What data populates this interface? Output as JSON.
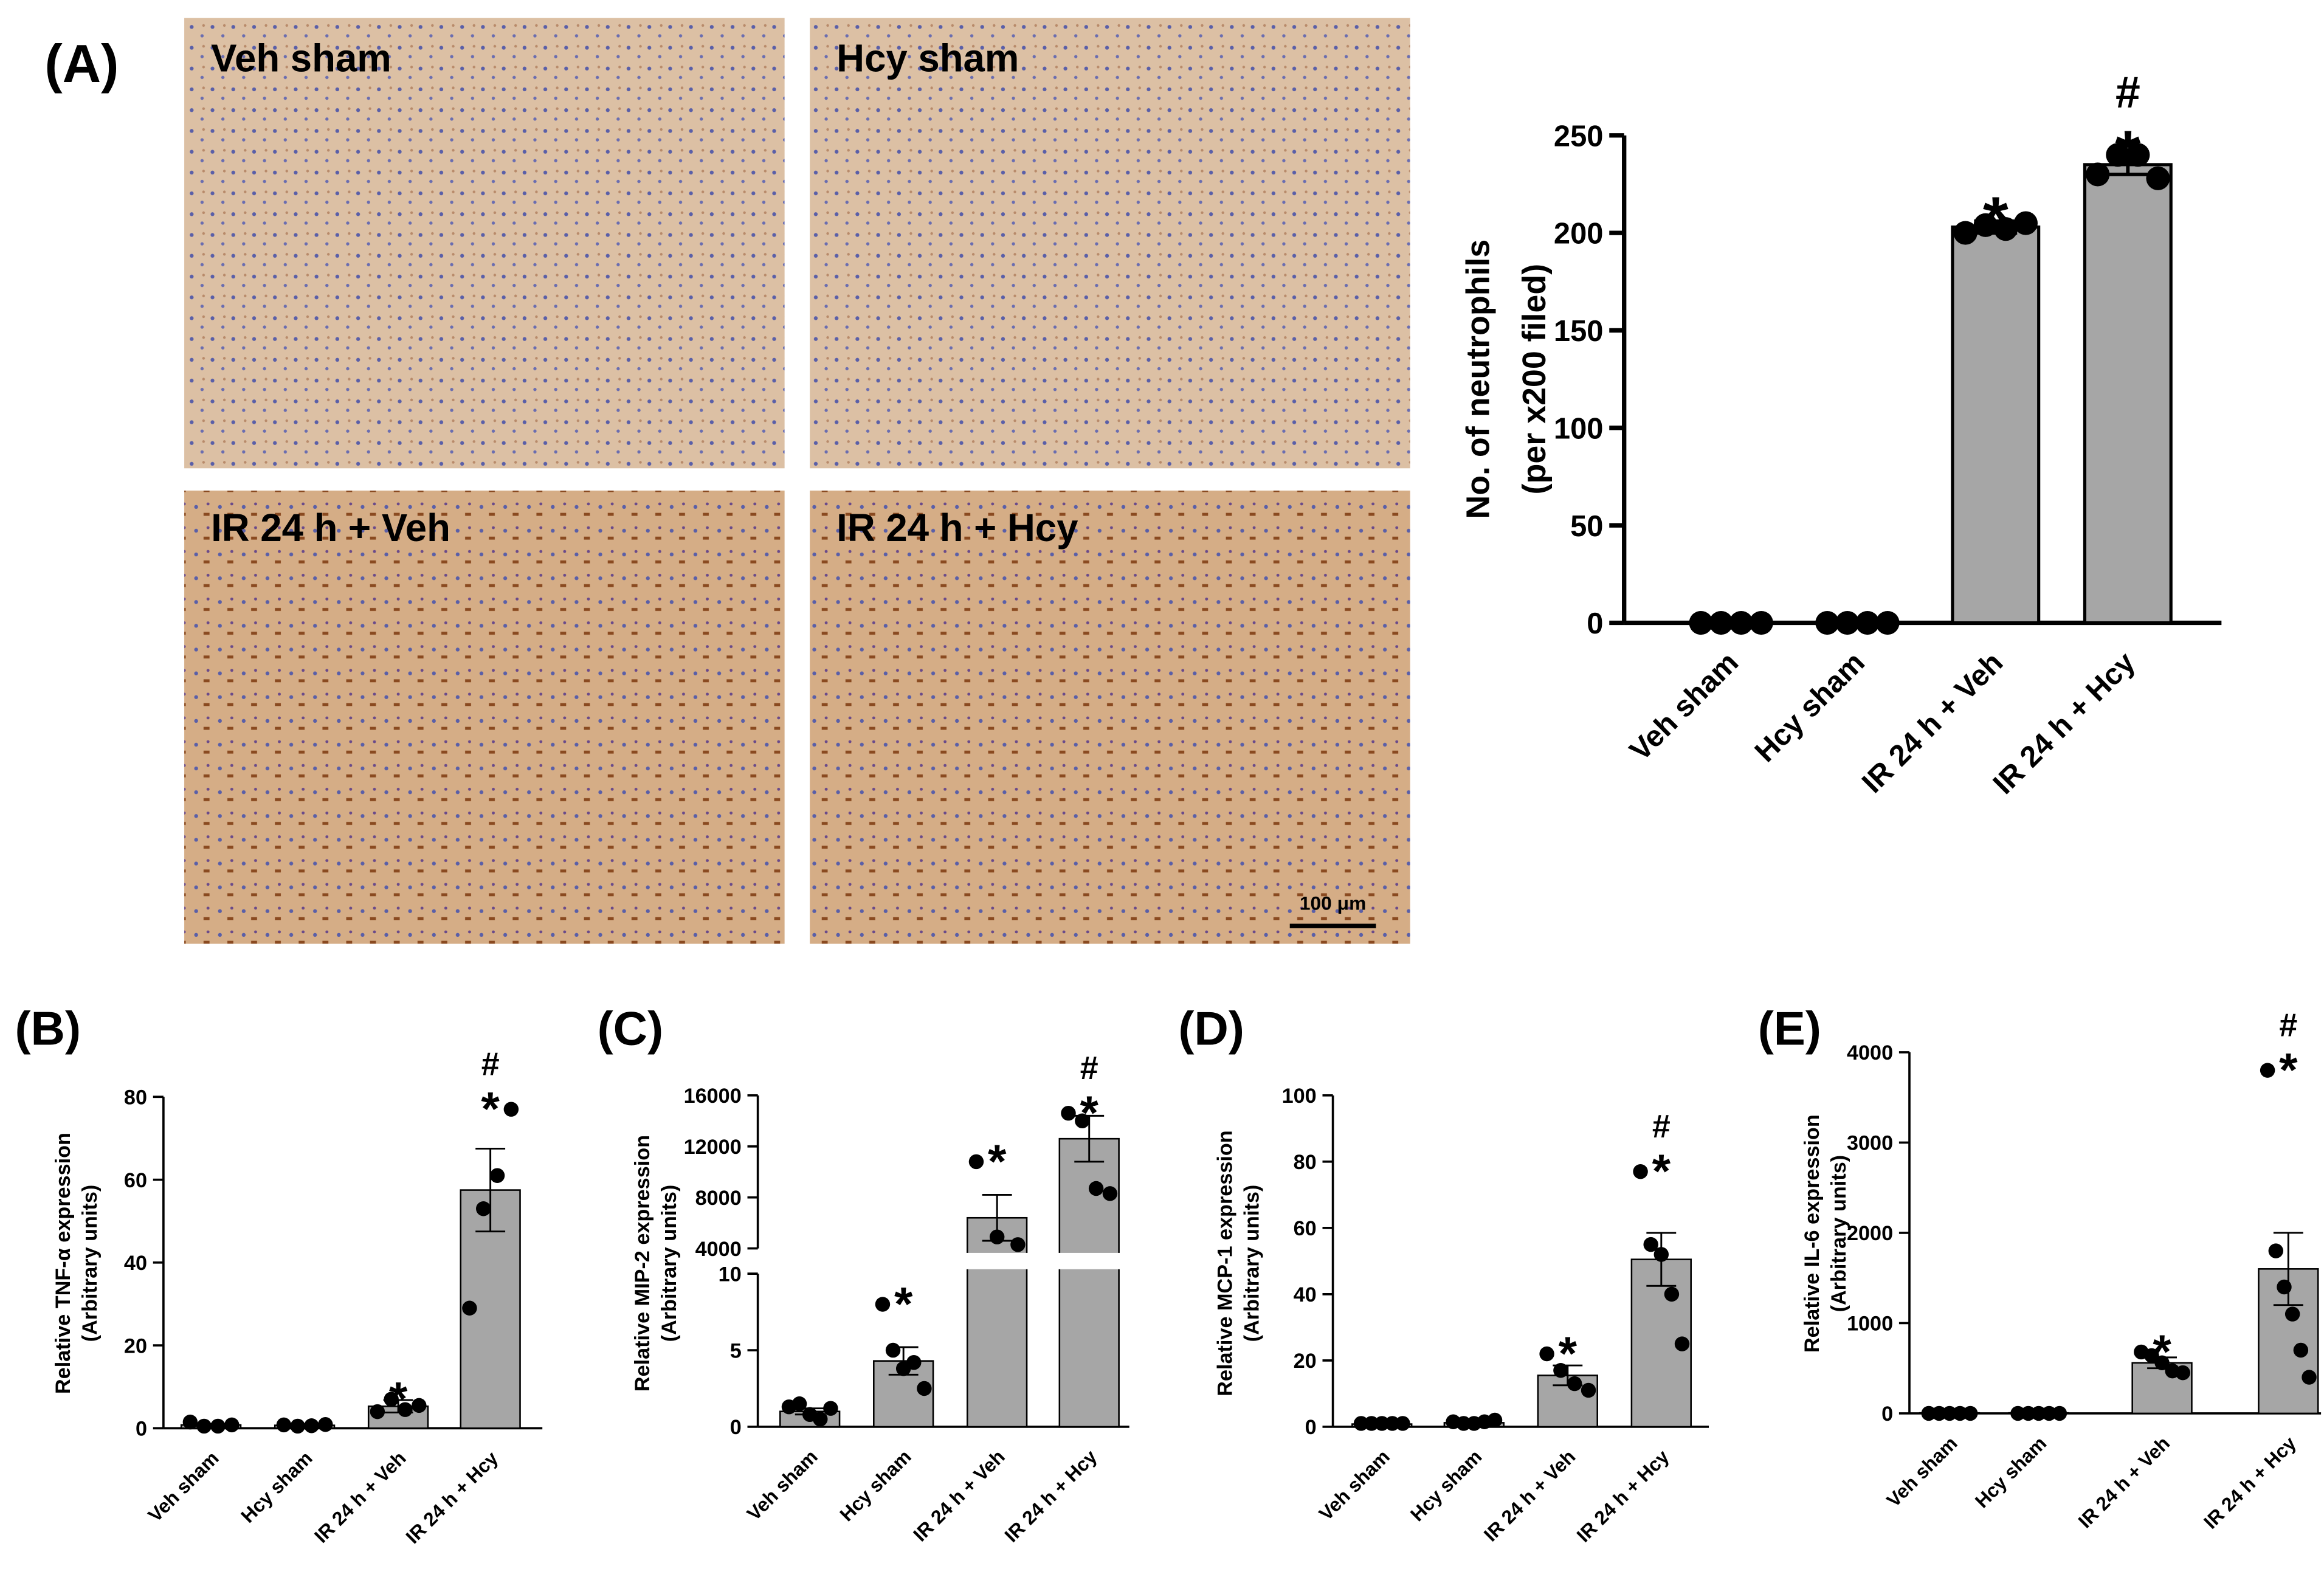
{
  "panel_labels": [
    "(A)",
    "(B)",
    "(C)",
    "(D)",
    "(E)"
  ],
  "micrographs": [
    {
      "label": "Veh sham"
    },
    {
      "label": "Hcy sham"
    },
    {
      "label": "IR 24 h + Veh"
    },
    {
      "label": "IR 24 h + Hcy"
    }
  ],
  "scale_bar": "100 μm",
  "chart_data": [
    {
      "type": "bar",
      "y_label": [
        "No. of neutrophils",
        "(per x200 filed)"
      ],
      "categories": [
        "Veh sham",
        "Hcy sham",
        "IR 24 h + Veh",
        "IR 24 h + Hcy"
      ],
      "values": [
        0,
        0,
        203,
        235
      ],
      "errors": [
        0,
        0,
        3,
        5
      ],
      "points": [
        [
          0,
          0,
          0,
          0
        ],
        [
          0,
          0,
          0,
          0
        ],
        [
          200,
          204,
          202,
          205
        ],
        [
          230,
          240,
          240,
          228
        ]
      ],
      "significance": [
        [],
        [],
        [
          "*"
        ],
        [
          "#",
          "*"
        ]
      ],
      "ylim": [
        0,
        250
      ],
      "yticks": [
        0,
        50,
        100,
        150,
        200,
        250
      ]
    },
    {
      "type": "bar",
      "y_label": [
        "Relative TNF-α expression",
        "(Arbitrary units)"
      ],
      "categories": [
        "Veh sham",
        "Hcy sham",
        "IR 24 h + Veh",
        "IR 24 h + Hcy"
      ],
      "values": [
        0.8,
        0.7,
        5.3,
        57.5
      ],
      "errors": [
        0.3,
        0.2,
        1.5,
        10
      ],
      "points": [
        [
          1.5,
          0.5,
          0.5,
          0.8
        ],
        [
          0.8,
          0.5,
          0.6,
          0.9
        ],
        [
          4,
          7,
          4.5,
          5.5
        ],
        [
          29,
          53,
          61,
          77
        ]
      ],
      "significance": [
        [],
        [],
        [
          "*"
        ],
        [
          "#",
          "*"
        ]
      ],
      "ylim": [
        0,
        80
      ],
      "yticks": [
        0,
        20,
        40,
        60,
        80
      ]
    },
    {
      "type": "bar",
      "y_label": [
        "Relative MIP-2 expression",
        "(Arbitrary units)"
      ],
      "categories": [
        "Veh sham",
        "Hcy sham",
        "IR 24 h + Veh",
        "IR 24 h + Hcy"
      ],
      "values": [
        1.0,
        4.3,
        6400,
        12600
      ],
      "errors": [
        0.2,
        0.9,
        1800,
        1800
      ],
      "points": [
        [
          1.3,
          1.5,
          0.8,
          0.5,
          1.2
        ],
        [
          8,
          5,
          3.8,
          4.2,
          2.5
        ],
        [
          10800,
          4900,
          4300
        ],
        [
          14600,
          14000,
          8700,
          8300
        ]
      ],
      "significance": [
        [],
        [
          "*"
        ],
        [
          "*"
        ],
        [
          "#",
          "*"
        ]
      ],
      "ylim": [
        0,
        10
      ],
      "yticks": [
        0,
        5,
        10
      ],
      "y_break": {
        "ylim": [
          4000,
          16000
        ],
        "yticks": [
          4000,
          8000,
          12000,
          16000
        ]
      }
    },
    {
      "type": "bar",
      "y_label": [
        "Relative MCP-1 expression",
        "(Arbitrary units)"
      ],
      "categories": [
        "Veh sham",
        "Hcy sham",
        "IR 24 h + Veh",
        "IR 24 h + Hcy"
      ],
      "values": [
        0.8,
        1.2,
        15.5,
        50.5
      ],
      "errors": [
        0.3,
        0.4,
        3,
        8
      ],
      "points": [
        [
          1,
          1,
          1,
          1,
          1
        ],
        [
          1.5,
          1,
          1,
          1.5,
          2
        ],
        [
          22,
          17,
          13,
          11
        ],
        [
          77,
          55,
          52,
          40,
          25
        ]
      ],
      "significance": [
        [],
        [],
        [
          "*"
        ],
        [
          "#",
          "*"
        ]
      ],
      "ylim": [
        0,
        100
      ],
      "yticks": [
        0,
        20,
        40,
        60,
        80,
        100
      ]
    },
    {
      "type": "bar",
      "y_label": [
        "Relative IL-6 expression",
        "(Arbitrary units)"
      ],
      "categories": [
        "Veh sham",
        "Hcy sham",
        "IR 24 h + Veh",
        "IR 24 h + Hcy"
      ],
      "values": [
        5,
        5,
        560,
        1600
      ],
      "errors": [
        3,
        3,
        60,
        400
      ],
      "points": [
        [
          0,
          0,
          0,
          0,
          0
        ],
        [
          0,
          0,
          0,
          0,
          0
        ],
        [
          680,
          640,
          560,
          470,
          450
        ],
        [
          3800,
          1800,
          1400,
          1100,
          700,
          400
        ]
      ],
      "significance": [
        [],
        [],
        [
          "*"
        ],
        [
          "#",
          "*"
        ]
      ],
      "ylim": [
        0,
        4000
      ],
      "yticks": [
        0,
        1000,
        2000,
        3000,
        4000
      ]
    }
  ]
}
